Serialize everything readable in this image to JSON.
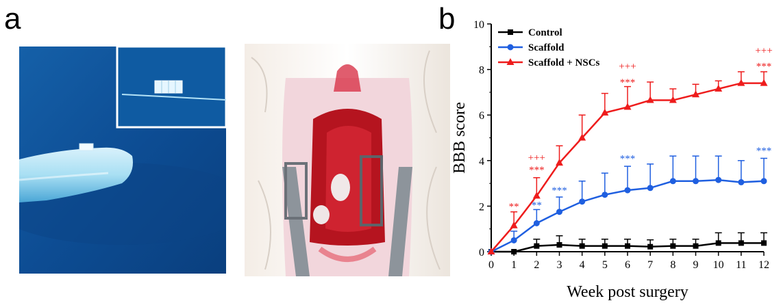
{
  "panels": {
    "a": {
      "label": "a"
    },
    "b": {
      "label": "b"
    }
  },
  "chart_data": {
    "type": "line",
    "xlabel": "Week post surgery",
    "ylabel": "BBB score",
    "x": [
      0,
      1,
      2,
      3,
      4,
      5,
      6,
      7,
      8,
      9,
      10,
      11,
      12
    ],
    "xlim": [
      0,
      12
    ],
    "ylim": [
      0,
      10
    ],
    "xticks": [
      0,
      1,
      2,
      3,
      4,
      5,
      6,
      7,
      8,
      9,
      10,
      11,
      12
    ],
    "yticks": [
      0,
      2,
      4,
      6,
      8,
      10
    ],
    "grid": false,
    "legend_position": "top-left",
    "series": [
      {
        "name": "Control",
        "color": "#000000",
        "marker": "square",
        "values": [
          0,
          0,
          0.25,
          0.3,
          0.25,
          0.25,
          0.25,
          0.22,
          0.25,
          0.25,
          0.38,
          0.38,
          0.38
        ],
        "errors": [
          0,
          0,
          0.3,
          0.4,
          0.3,
          0.3,
          0.3,
          0.3,
          0.3,
          0.3,
          0.45,
          0.45,
          0.45
        ]
      },
      {
        "name": "Scaffold",
        "color": "#1f5fe0",
        "marker": "circle",
        "values": [
          0,
          0.5,
          1.25,
          1.75,
          2.2,
          2.5,
          2.7,
          2.8,
          3.1,
          3.1,
          3.15,
          3.05,
          3.1
        ],
        "errors": [
          0,
          0.4,
          0.6,
          0.65,
          0.9,
          0.95,
          1.05,
          1.05,
          1.1,
          1.1,
          1.05,
          0.95,
          1.0
        ]
      },
      {
        "name": "Scaffold + NSCs",
        "color": "#ee1c1c",
        "marker": "triangle",
        "values": [
          0,
          1.15,
          2.45,
          3.9,
          5.0,
          6.1,
          6.35,
          6.65,
          6.65,
          6.9,
          7.15,
          7.4,
          7.4
        ],
        "errors": [
          0,
          0.6,
          0.8,
          0.75,
          1.0,
          0.85,
          0.9,
          0.8,
          0.5,
          0.45,
          0.35,
          0.5,
          0.5
        ]
      }
    ],
    "annotations": [
      {
        "x": 1,
        "text": "**",
        "color": "#ee1c1c",
        "y": 1.85
      },
      {
        "x": 2,
        "text": "+++",
        "color": "#ee1c1c",
        "y": 4.0
      },
      {
        "x": 2,
        "text": "***",
        "color": "#ee1c1c",
        "y": 3.45
      },
      {
        "x": 2,
        "text": "**",
        "color": "#1f5fe0",
        "y": 1.9
      },
      {
        "x": 3,
        "text": "***",
        "color": "#1f5fe0",
        "y": 2.55
      },
      {
        "x": 6,
        "text": "+++",
        "color": "#ee1c1c",
        "y": 8.0
      },
      {
        "x": 6,
        "text": "***",
        "color": "#ee1c1c",
        "y": 7.3
      },
      {
        "x": 6,
        "text": "***",
        "color": "#1f5fe0",
        "y": 3.95
      },
      {
        "x": 12,
        "text": "+++",
        "color": "#ee1c1c",
        "y": 8.7
      },
      {
        "x": 12,
        "text": "***",
        "color": "#ee1c1c",
        "y": 8.0
      },
      {
        "x": 12,
        "text": "***",
        "color": "#1f5fe0",
        "y": 4.3
      }
    ]
  }
}
